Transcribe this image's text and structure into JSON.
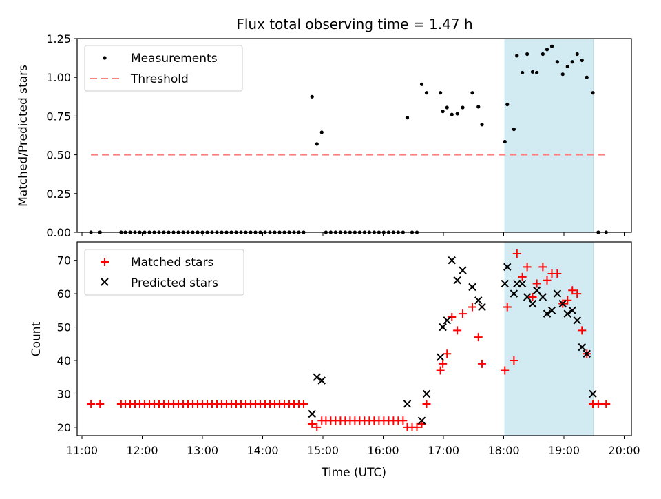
{
  "figure": {
    "title": "Flux total observing time = 1.47 h",
    "xlabel": "Time (UTC)",
    "x_ticks": [
      "11:00",
      "12:00",
      "13:00",
      "14:00",
      "15:00",
      "16:00",
      "17:00",
      "18:00",
      "19:00",
      "20:00"
    ],
    "x_tick_hours": [
      11,
      12,
      13,
      14,
      15,
      16,
      17,
      18,
      19,
      20
    ],
    "xlim_hours": [
      10.92,
      20.12
    ],
    "shaded_interval_hours": [
      18.02,
      19.49
    ],
    "colors": {
      "shade": "#add8e6",
      "measurement": "#000000",
      "threshold": "#ff7f7f",
      "matched": "#ff0000",
      "predicted": "#000000"
    }
  },
  "chart_data": [
    {
      "type": "scatter",
      "ylabel": "Matched/Predicted stars",
      "ylim": [
        0,
        1.25
      ],
      "y_ticks": [
        "0.00",
        "0.25",
        "0.50",
        "0.75",
        "1.00",
        "1.25"
      ],
      "y_tick_values": [
        0,
        0.25,
        0.5,
        0.75,
        1.0,
        1.25
      ],
      "legend": {
        "placement": "upper-left",
        "entries": [
          "Measurements",
          "Threshold"
        ]
      },
      "series": [
        {
          "name": "Measurements",
          "x": [
            11.15,
            11.3,
            11.65,
            11.72,
            11.8,
            11.88,
            11.96,
            12.04,
            12.12,
            12.2,
            12.28,
            12.36,
            12.44,
            12.52,
            12.6,
            12.68,
            12.76,
            12.84,
            12.92,
            13.0,
            13.08,
            13.16,
            13.24,
            13.32,
            13.4,
            13.48,
            13.56,
            13.64,
            13.72,
            13.8,
            13.88,
            13.96,
            14.04,
            14.12,
            14.2,
            14.28,
            14.36,
            14.44,
            14.52,
            14.6,
            14.68,
            14.82,
            14.9,
            14.98,
            15.05,
            15.13,
            15.21,
            15.29,
            15.37,
            15.45,
            15.53,
            15.61,
            15.69,
            15.77,
            15.85,
            15.93,
            16.01,
            16.09,
            16.17,
            16.25,
            16.33,
            16.4,
            16.48,
            16.56,
            16.64,
            16.72,
            16.95,
            16.99,
            17.06,
            17.14,
            17.23,
            17.32,
            17.48,
            17.58,
            17.64,
            18.02,
            18.06,
            18.17,
            18.22,
            18.31,
            18.39,
            18.48,
            18.55,
            18.65,
            18.72,
            18.8,
            18.89,
            18.98,
            19.06,
            19.14,
            19.22,
            19.3,
            19.38,
            19.48,
            19.57,
            19.7
          ],
          "y": [
            0,
            0,
            0,
            0,
            0,
            0,
            0,
            0,
            0,
            0,
            0,
            0,
            0,
            0,
            0,
            0,
            0,
            0,
            0,
            0,
            0,
            0,
            0,
            0,
            0,
            0,
            0,
            0,
            0,
            0,
            0,
            0,
            0,
            0,
            0,
            0,
            0,
            0,
            0,
            0,
            0,
            0.875,
            0.57,
            0.645,
            0,
            0,
            0,
            0,
            0,
            0,
            0,
            0,
            0,
            0,
            0,
            0,
            0,
            0,
            0,
            0,
            0,
            0.74,
            0,
            0,
            0.955,
            0.9,
            0.9,
            0.78,
            0.805,
            0.76,
            0.765,
            0.805,
            0.9,
            0.81,
            0.695,
            0.585,
            0.825,
            0.665,
            1.14,
            1.03,
            1.15,
            1.035,
            1.03,
            1.15,
            1.18,
            1.2,
            1.1,
            1.02,
            1.07,
            1.1,
            1.15,
            1.11,
            1.0,
            0.9,
            0,
            0
          ]
        },
        {
          "name": "Threshold",
          "x": [
            11.15,
            19.7
          ],
          "y": [
            0.5,
            0.5
          ]
        }
      ]
    },
    {
      "type": "scatter",
      "ylabel": "Count",
      "ylim": [
        17.5,
        75.5
      ],
      "y_ticks": [
        "20",
        "30",
        "40",
        "50",
        "60",
        "70"
      ],
      "y_tick_values": [
        20,
        30,
        40,
        50,
        60,
        70
      ],
      "legend": {
        "placement": "upper-left",
        "entries": [
          "Matched stars",
          "Predicted stars"
        ]
      },
      "series": [
        {
          "name": "Matched stars",
          "x": [
            11.15,
            11.3,
            11.65,
            11.72,
            11.8,
            11.88,
            11.96,
            12.04,
            12.12,
            12.2,
            12.28,
            12.36,
            12.44,
            12.52,
            12.6,
            12.68,
            12.76,
            12.84,
            12.92,
            13.0,
            13.08,
            13.16,
            13.24,
            13.32,
            13.4,
            13.48,
            13.56,
            13.64,
            13.72,
            13.8,
            13.88,
            13.96,
            14.04,
            14.12,
            14.2,
            14.28,
            14.36,
            14.44,
            14.52,
            14.6,
            14.68,
            14.82,
            14.9,
            14.98,
            15.05,
            15.13,
            15.21,
            15.29,
            15.37,
            15.45,
            15.53,
            15.61,
            15.69,
            15.77,
            15.85,
            15.93,
            16.01,
            16.09,
            16.17,
            16.25,
            16.33,
            16.4,
            16.48,
            16.56,
            16.64,
            16.72,
            16.95,
            16.99,
            17.06,
            17.14,
            17.23,
            17.32,
            17.48,
            17.58,
            17.64,
            18.02,
            18.06,
            18.17,
            18.22,
            18.31,
            18.39,
            18.48,
            18.55,
            18.65,
            18.72,
            18.8,
            18.89,
            18.98,
            19.06,
            19.14,
            19.22,
            19.3,
            19.38,
            19.48,
            19.57,
            19.7
          ],
          "y": [
            27,
            27,
            27,
            27,
            27,
            27,
            27,
            27,
            27,
            27,
            27,
            27,
            27,
            27,
            27,
            27,
            27,
            27,
            27,
            27,
            27,
            27,
            27,
            27,
            27,
            27,
            27,
            27,
            27,
            27,
            27,
            27,
            27,
            27,
            27,
            27,
            27,
            27,
            27,
            27,
            27,
            21,
            20,
            22,
            22,
            22,
            22,
            22,
            22,
            22,
            22,
            22,
            22,
            22,
            22,
            22,
            22,
            22,
            22,
            22,
            22,
            20,
            20,
            20,
            21,
            27,
            37,
            39,
            42,
            53,
            49,
            54,
            56,
            47,
            39,
            37,
            56,
            40,
            72,
            65,
            68,
            59,
            63,
            68,
            64,
            66,
            66,
            57,
            58,
            61,
            60,
            49,
            42,
            27,
            27,
            27
          ]
        },
        {
          "name": "Predicted stars",
          "x": [
            14.82,
            14.9,
            14.98,
            16.4,
            16.64,
            16.72,
            16.95,
            16.99,
            17.06,
            17.14,
            17.23,
            17.32,
            17.48,
            17.58,
            17.64,
            18.02,
            18.06,
            18.17,
            18.22,
            18.31,
            18.39,
            18.48,
            18.55,
            18.65,
            18.72,
            18.8,
            18.89,
            18.98,
            19.06,
            19.14,
            19.22,
            19.3,
            19.38,
            19.48
          ],
          "y": [
            24,
            35,
            34,
            27,
            22,
            30,
            41,
            50,
            52,
            70,
            64,
            67,
            62,
            58,
            56,
            63,
            68,
            60,
            63,
            63,
            59,
            57,
            61,
            59,
            54,
            55,
            60,
            57,
            54,
            55,
            52,
            44,
            42,
            30
          ]
        }
      ]
    }
  ]
}
